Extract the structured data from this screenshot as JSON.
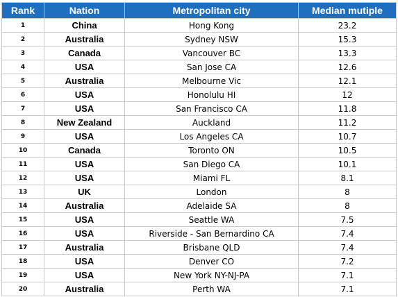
{
  "table": {
    "headers": {
      "rank": "Rank",
      "nation": "Nation",
      "city": "Metropolitan city",
      "multiple": "Median mutiple"
    },
    "rows": [
      {
        "rank": "1",
        "nation": "China",
        "city": "Hong Kong",
        "multiple": "23.2"
      },
      {
        "rank": "2",
        "nation": "Australia",
        "city": "Sydney NSW",
        "multiple": "15.3"
      },
      {
        "rank": "3",
        "nation": "Canada",
        "city": "Vancouver BC",
        "multiple": "13.3"
      },
      {
        "rank": "4",
        "nation": "USA",
        "city": "San Jose CA",
        "multiple": "12.6"
      },
      {
        "rank": "5",
        "nation": "Australia",
        "city": "Melbourne Vic",
        "multiple": "12.1"
      },
      {
        "rank": "6",
        "nation": "USA",
        "city": "Honolulu HI",
        "multiple": "12"
      },
      {
        "rank": "7",
        "nation": "USA",
        "city": "San Francisco CA",
        "multiple": "11.8"
      },
      {
        "rank": "8",
        "nation": "New Zealand",
        "city": "Auckland",
        "multiple": "11.2"
      },
      {
        "rank": "9",
        "nation": "USA",
        "city": "Los Angeles CA",
        "multiple": "10.7"
      },
      {
        "rank": "10",
        "nation": "Canada",
        "city": "Toronto ON",
        "multiple": "10.5"
      },
      {
        "rank": "11",
        "nation": "USA",
        "city": "San Diego CA",
        "multiple": "10.1"
      },
      {
        "rank": "12",
        "nation": "USA",
        "city": "Miami FL",
        "multiple": "8.1"
      },
      {
        "rank": "13",
        "nation": "UK",
        "city": "London",
        "multiple": "8"
      },
      {
        "rank": "14",
        "nation": "Australia",
        "city": "Adelaide SA",
        "multiple": "8"
      },
      {
        "rank": "15",
        "nation": "USA",
        "city": "Seattle WA",
        "multiple": "7.5"
      },
      {
        "rank": "16",
        "nation": "USA",
        "city": "Riverside - San Bernardino CA",
        "multiple": "7.4"
      },
      {
        "rank": "17",
        "nation": "Australia",
        "city": "Brisbane QLD",
        "multiple": "7.4"
      },
      {
        "rank": "18",
        "nation": "USA",
        "city": "Denver CO",
        "multiple": "7.2"
      },
      {
        "rank": "19",
        "nation": "USA",
        "city": "New York NY-NJ-PA",
        "multiple": "7.1"
      },
      {
        "rank": "20",
        "nation": "Australia",
        "city": "Perth WA",
        "multiple": "7.1"
      }
    ]
  },
  "colors": {
    "header_background": "#1f6fc0",
    "header_text": "#ffffff",
    "grid_line": "#c9c9c9"
  }
}
